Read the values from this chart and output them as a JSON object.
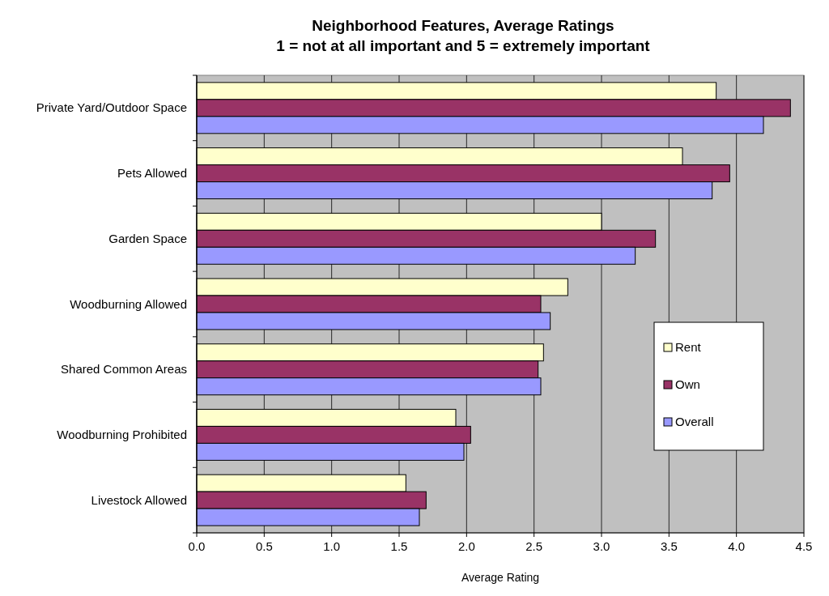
{
  "chart_data": {
    "type": "bar",
    "orientation": "horizontal",
    "title": "Neighborhood Features, Average Ratings",
    "subtitle": "1 = not at all important and 5 = extremely important",
    "xlabel": "Average Rating",
    "categories": [
      "Private Yard/Outdoor Space",
      "Pets Allowed",
      "Garden Space",
      "Woodburning Allowed",
      "Shared Common Areas",
      "Woodburning Prohibited",
      "Livestock Allowed"
    ],
    "series": [
      {
        "name": "Rent",
        "color": "#ffffcc",
        "values": [
          3.85,
          3.6,
          3.0,
          2.75,
          2.57,
          1.92,
          1.55
        ]
      },
      {
        "name": "Own",
        "color": "#993366",
        "values": [
          4.4,
          3.95,
          3.4,
          2.55,
          2.53,
          2.03,
          1.7
        ]
      },
      {
        "name": "Overall",
        "color": "#9999ff",
        "values": [
          4.2,
          3.82,
          3.25,
          2.62,
          2.55,
          1.98,
          1.65
        ]
      }
    ],
    "xlim": [
      0,
      4.5
    ],
    "xticks": [
      {
        "value": 0,
        "label": "0.0"
      },
      {
        "value": 0.5,
        "label": "0.5"
      },
      {
        "value": 1,
        "label": "1.0"
      },
      {
        "value": 1.5,
        "label": "1.5"
      },
      {
        "value": 2,
        "label": "2.0"
      },
      {
        "value": 2.5,
        "label": "2.5"
      },
      {
        "value": 3,
        "label": "3.0"
      },
      {
        "value": 3.5,
        "label": "3.5"
      },
      {
        "value": 4,
        "label": "4.0"
      },
      {
        "value": 4.5,
        "label": "4.5"
      }
    ],
    "grid": "x",
    "legend": "right"
  }
}
